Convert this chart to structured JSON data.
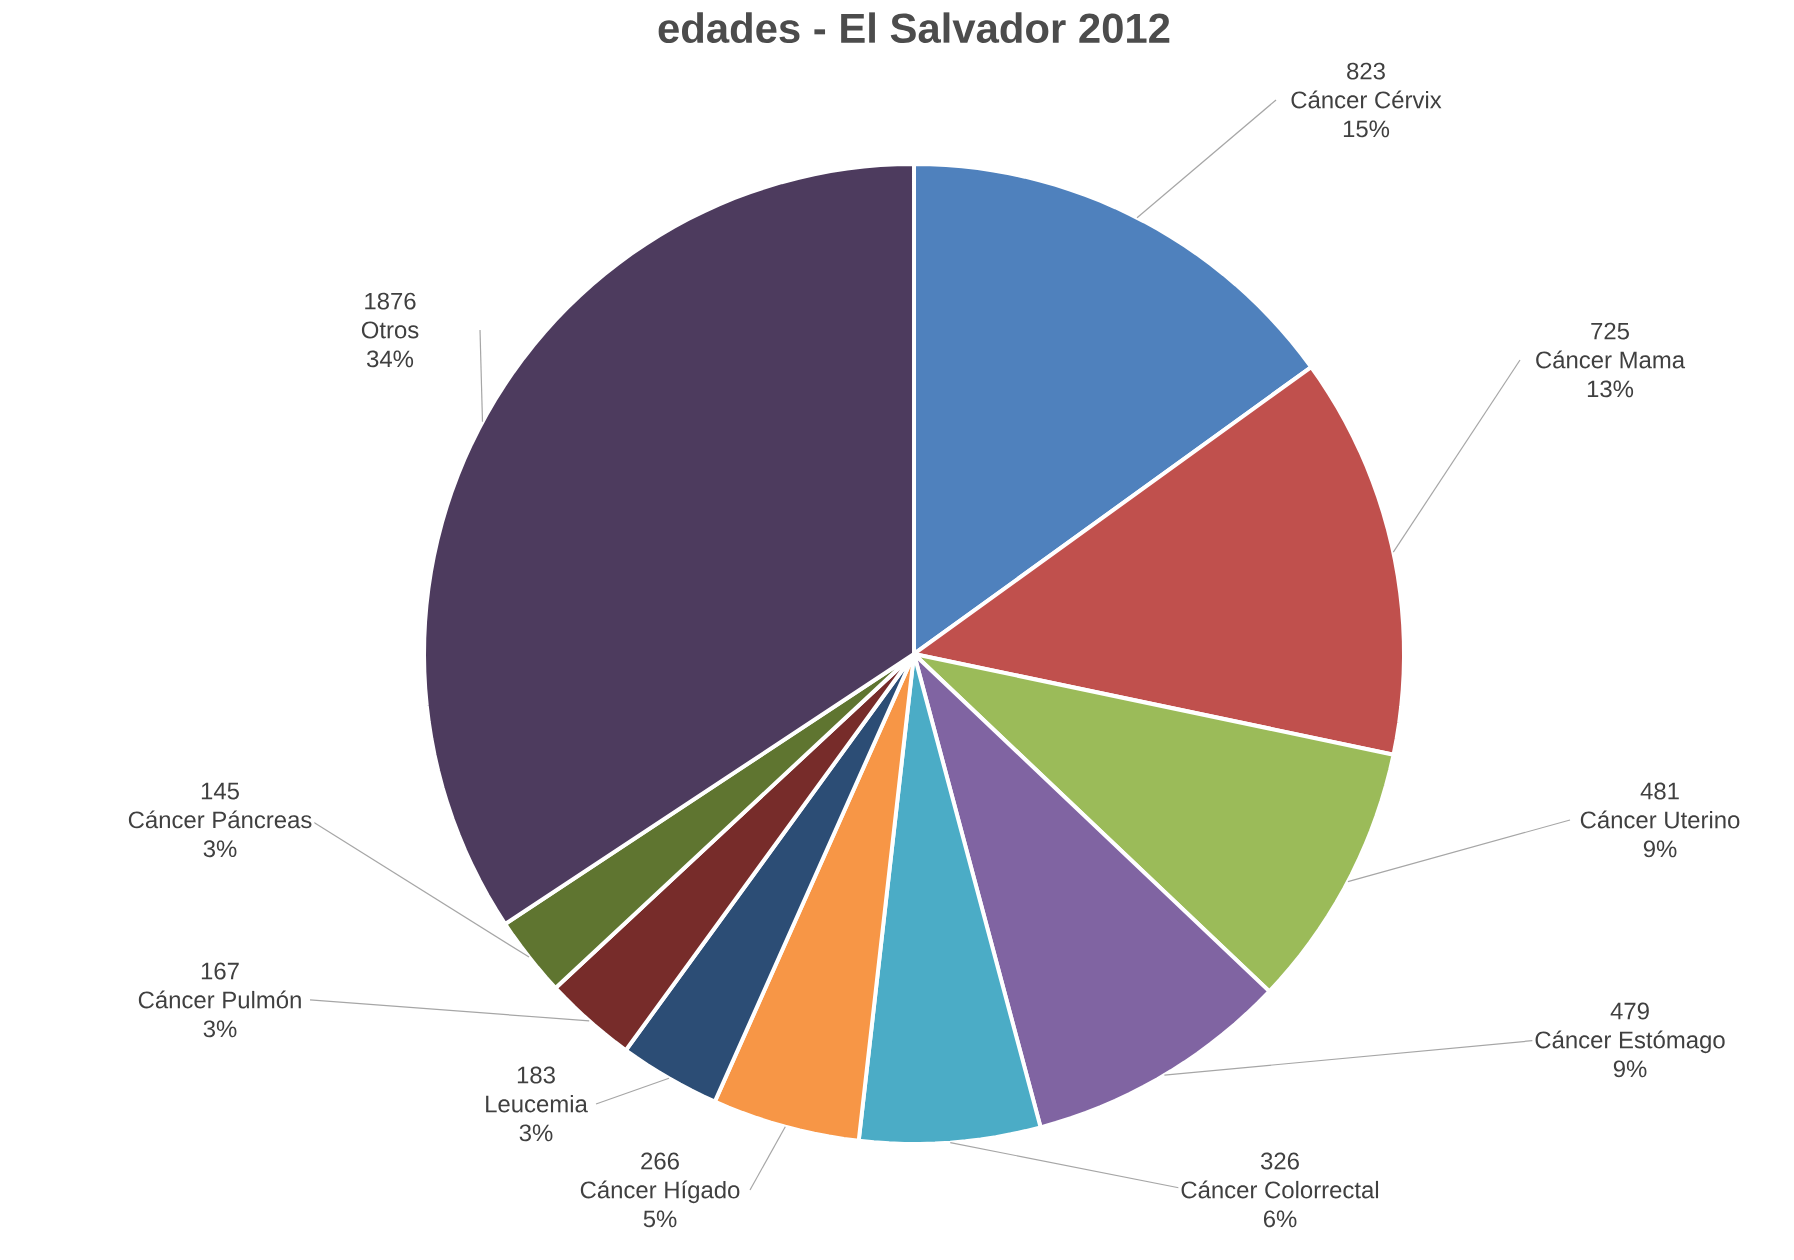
{
  "chart_data": {
    "type": "pie",
    "title": "edades - El Salvador 2012",
    "categories": [
      "Cáncer Cérvix",
      "Cáncer Mama",
      "Cáncer Uterino",
      "Cáncer Estómago",
      "Cáncer Colorrectal",
      "Cáncer Hígado",
      "Leucemia",
      "Cáncer Pulmón",
      "Cáncer Páncreas",
      "Otros"
    ],
    "values": [
      823,
      725,
      481,
      479,
      326,
      266,
      183,
      167,
      145,
      1876
    ],
    "value_labels": [
      "823",
      "725",
      "481",
      "479",
      "326",
      "266",
      "183",
      "167",
      "145",
      "1876"
    ],
    "annotations": [
      {
        "text": "15%",
        "x": "Cáncer Cérvix"
      },
      {
        "text": "13%",
        "x": "Cáncer Mama"
      },
      {
        "text": "9%",
        "x": "Cáncer Uterino"
      },
      {
        "text": "9%",
        "x": "Cáncer Estómago"
      },
      {
        "text": "6%",
        "x": "Cáncer Colorrectal"
      },
      {
        "text": "5%",
        "x": "Cáncer Hígado"
      },
      {
        "text": "3%",
        "x": "Leucemia"
      },
      {
        "text": "3%",
        "x": "Cáncer Pulmón"
      },
      {
        "text": "3%",
        "x": "Cáncer Páncreas"
      },
      {
        "text": "34%",
        "x": "Otros"
      }
    ],
    "colors": [
      "#4f81bd",
      "#c0504d",
      "#9bbb59",
      "#8064a2",
      "#4bacc6",
      "#f79646",
      "#2c4d75",
      "#772c2a",
      "#5f7530",
      "#4d3b5e"
    ]
  }
}
